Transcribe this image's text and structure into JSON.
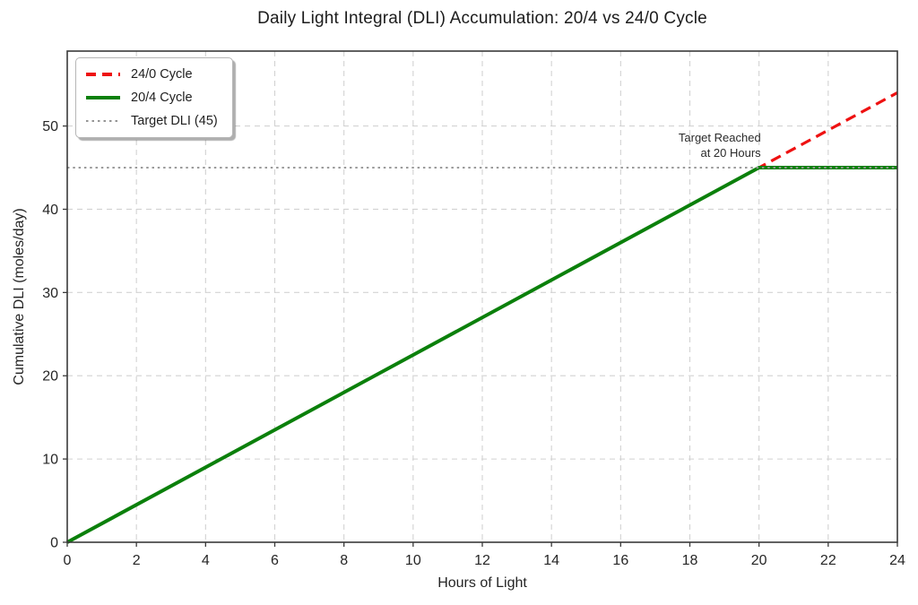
{
  "chart_data": {
    "type": "line",
    "title": "Daily Light Integral (DLI) Accumulation: 20/4 vs 24/0 Cycle",
    "xlabel": "Hours of Light",
    "ylabel": "Cumulative DLI (moles/day)",
    "xlim": [
      0,
      24
    ],
    "ylim": [
      0,
      59
    ],
    "xticks": [
      0,
      2,
      4,
      6,
      8,
      10,
      12,
      14,
      16,
      18,
      20,
      22,
      24
    ],
    "yticks": [
      0,
      10,
      20,
      30,
      40,
      50
    ],
    "grid": true,
    "grid_style": "dashed",
    "legend_position": "upper-left",
    "series": [
      {
        "name": "24/0 Cycle",
        "color": "#ee1111",
        "style": "dashed",
        "x": [
          0,
          24
        ],
        "y": [
          0,
          54
        ]
      },
      {
        "name": "20/4 Cycle",
        "color": "#0b800b",
        "style": "solid",
        "x": [
          0,
          20,
          24
        ],
        "y": [
          0,
          45,
          45
        ]
      },
      {
        "name": "Target DLI (45)",
        "color": "#949494",
        "style": "dotted",
        "x": [
          0,
          24
        ],
        "y": [
          45,
          45
        ]
      }
    ],
    "target_dli": 45,
    "annotation": {
      "line1": "Target Reached",
      "line2": "at 20 Hours",
      "anchor_x": 20,
      "anchor_y": 49.5,
      "align": "right"
    }
  }
}
